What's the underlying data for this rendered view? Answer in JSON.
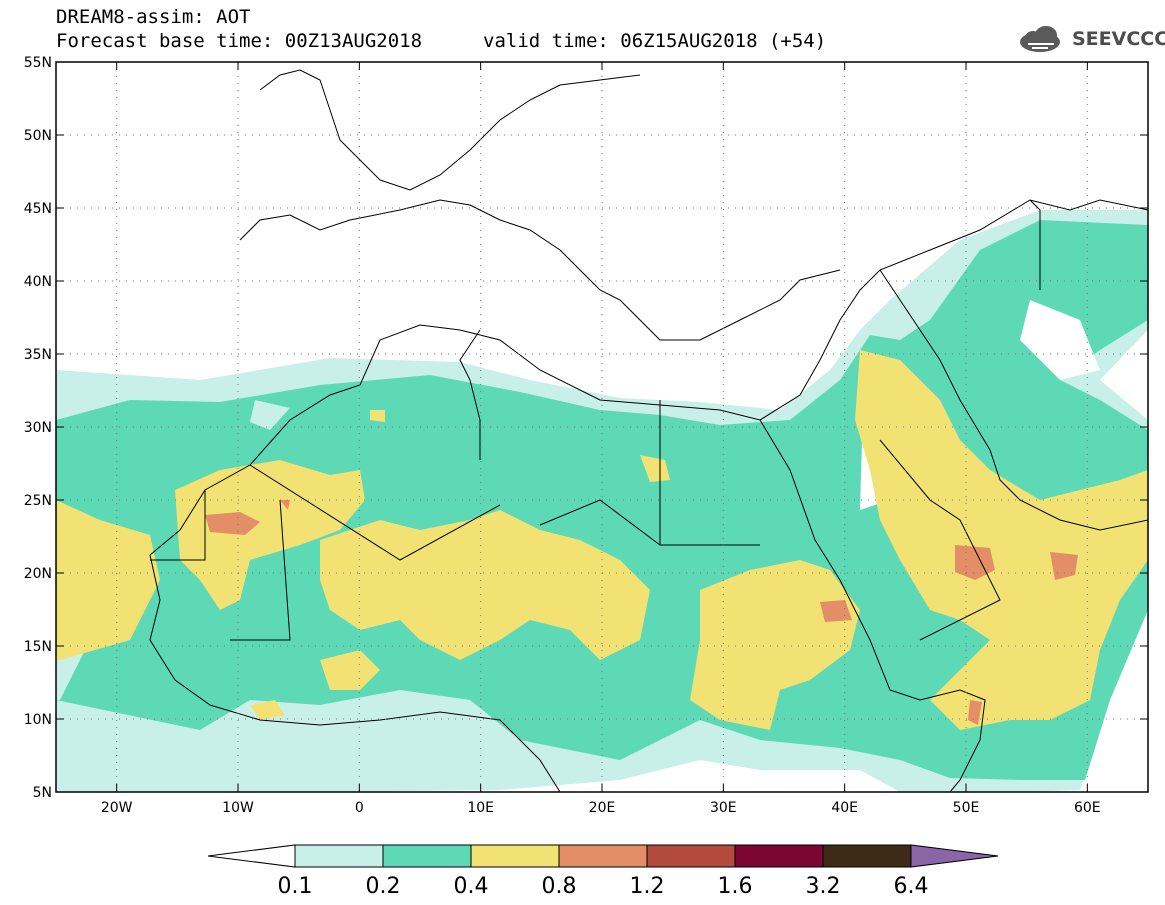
{
  "header": {
    "model": "DREAM8-assim: AOT",
    "base_time": "Forecast base time: 00Z13AUG2018",
    "valid_time": "valid time: 06Z15AUG2018 (+54)",
    "logo_text": "SEEVCCC"
  },
  "map": {
    "lat_labels": [
      "55N",
      "50N",
      "45N",
      "40N",
      "35N",
      "30N",
      "25N",
      "20N",
      "15N",
      "10N",
      "5N"
    ],
    "lon_labels": [
      "20W",
      "10W",
      "0",
      "10E",
      "20E",
      "30E",
      "40E",
      "50E",
      "60E"
    ],
    "lon_range": [
      -25,
      65
    ],
    "lat_range": [
      5,
      55
    ],
    "grid": "dotted"
  },
  "colorbar": {
    "tick_labels": [
      "0.1",
      "0.2",
      "0.4",
      "0.8",
      "1.2",
      "1.6",
      "3.2",
      "6.4"
    ],
    "colors": [
      "#ffffff",
      "#c9efe9",
      "#5dd9b5",
      "#f2e273",
      "#e38e66",
      "#b24b3e",
      "#7d0532",
      "#3f2a17",
      "#8b65a8"
    ]
  }
}
